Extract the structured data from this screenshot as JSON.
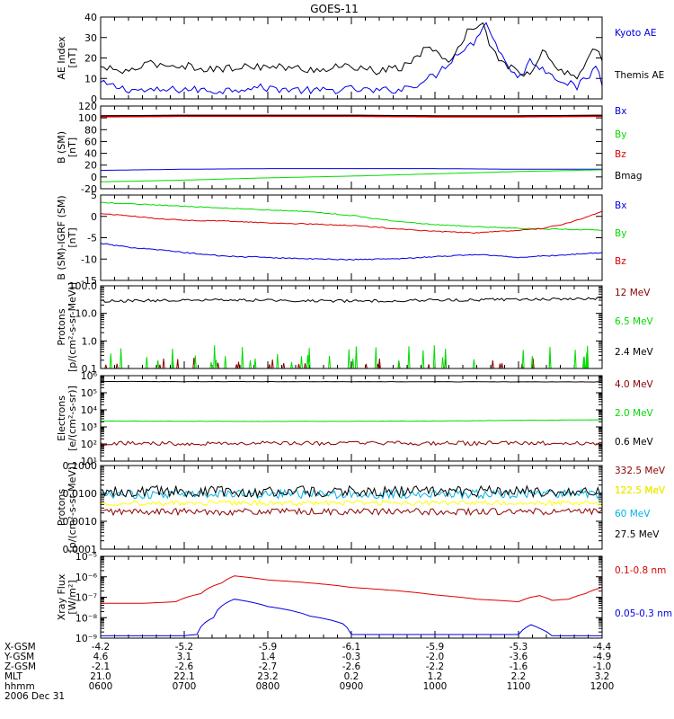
{
  "title": "GOES-11",
  "colors": {
    "black": "#000000",
    "blue": "#0000e6",
    "green": "#00dc00",
    "red": "#dc0000",
    "darkred": "#8b0000",
    "cyan": "#00b4e6",
    "yellow": "#ffff00"
  },
  "time_axis": {
    "ticks": [
      "0600",
      "0700",
      "0800",
      "0900",
      "1000",
      "1100",
      "1200"
    ],
    "row_labels": [
      "X-GSM",
      "Y-GSM",
      "Z-GSM",
      "MLT",
      "hhmm"
    ],
    "rows": [
      [
        "-4.2",
        "-5.2",
        "-5.9",
        "-6.1",
        "-5.9",
        "-5.3",
        "-4.4"
      ],
      [
        "4.6",
        "3.1",
        "1.4",
        "-0.3",
        "-2.0",
        "-3.6",
        "-4.9"
      ],
      [
        "-2.1",
        "-2.6",
        "-2.7",
        "-2.6",
        "-2.2",
        "-1.6",
        "-1.0"
      ],
      [
        "21.0",
        "22.1",
        "23.2",
        "0.2",
        "1.2",
        "2.2",
        "3.2"
      ],
      [
        "0600",
        "0700",
        "0800",
        "0900",
        "1000",
        "1100",
        "1200"
      ]
    ],
    "date": "2006 Dec 31"
  },
  "chart_data": [
    {
      "type": "line",
      "ylabel": "AE Index\n[nT]",
      "ylim": [
        0,
        42
      ],
      "yticks": [
        "0",
        "10",
        "20",
        "30",
        "40"
      ],
      "yscale": "linear",
      "series": [
        {
          "name": "Kyoto AE",
          "color": "#0000e6",
          "x": [
            6.0,
            6.3,
            6.6,
            7.0,
            7.4,
            7.8,
            8.2,
            8.6,
            9.0,
            9.3,
            9.6,
            9.8,
            10.0,
            10.15,
            10.3,
            10.45,
            10.6,
            10.8,
            11.0,
            11.15,
            11.3,
            11.5,
            11.7,
            11.85,
            11.95,
            12.0
          ],
          "y": [
            8,
            5,
            4,
            5,
            4,
            6,
            5,
            4,
            5,
            4,
            5,
            8,
            12,
            18,
            25,
            28,
            40,
            22,
            10,
            20,
            15,
            10,
            6,
            12,
            18,
            6
          ]
        },
        {
          "name": "Themis AE",
          "color": "#000000",
          "x": [
            6.0,
            6.3,
            6.6,
            7.0,
            7.4,
            7.8,
            8.2,
            8.6,
            9.0,
            9.3,
            9.6,
            9.8,
            9.95,
            10.1,
            10.25,
            10.4,
            10.55,
            10.7,
            10.85,
            11.0,
            11.15,
            11.3,
            11.5,
            11.7,
            11.85,
            11.95,
            12.0
          ],
          "y": [
            16,
            14,
            18,
            17,
            15,
            17,
            16,
            15,
            17,
            14,
            16,
            22,
            28,
            18,
            24,
            35,
            40,
            24,
            18,
            14,
            12,
            25,
            14,
            12,
            22,
            28,
            18
          ]
        }
      ]
    },
    {
      "type": "line",
      "ylabel": "B (SM)\n[nT]",
      "ylim": [
        -22,
        122
      ],
      "yticks": [
        "-20",
        "0",
        "20",
        "40",
        "60",
        "80",
        "100",
        "120"
      ],
      "yscale": "linear",
      "series": [
        {
          "name": "Bx",
          "color": "#0000e6",
          "x": [
            6.0,
            7.0,
            8.0,
            9.0,
            10.0,
            11.0,
            12.0
          ],
          "y": [
            10,
            12,
            13,
            13,
            13,
            12,
            12
          ]
        },
        {
          "name": "By",
          "color": "#00dc00",
          "x": [
            6.0,
            7.0,
            8.0,
            9.0,
            10.0,
            11.0,
            12.0
          ],
          "y": [
            -10,
            -7,
            -3,
            0,
            4,
            8,
            11
          ]
        },
        {
          "name": "Bz",
          "color": "#dc0000",
          "x": [
            6.0,
            7.0,
            8.0,
            9.0,
            10.0,
            11.0,
            12.0
          ],
          "y": [
            104,
            105,
            105,
            105,
            104,
            104,
            105
          ]
        },
        {
          "name": "Bmag",
          "color": "#000000",
          "x": [
            6.0,
            7.0,
            8.0,
            9.0,
            10.0,
            11.0,
            12.0
          ],
          "y": [
            105,
            106,
            106,
            106,
            105,
            105,
            106
          ]
        }
      ]
    },
    {
      "type": "line",
      "ylabel": "B (SM)-IGRF (SM)\n[nT]",
      "ylim": [
        -16,
        7
      ],
      "yticks": [
        "-15",
        "-10",
        "-5",
        "0",
        "5"
      ],
      "yscale": "linear",
      "series": [
        {
          "name": "Bx",
          "color": "#0000e6",
          "x": [
            6.0,
            6.3,
            6.6,
            7.0,
            7.5,
            8.0,
            8.5,
            9.0,
            9.5,
            10.0,
            10.5,
            11.0,
            11.5,
            12.0
          ],
          "y": [
            -6,
            -7,
            -7.5,
            -8.5,
            -9.5,
            -9.8,
            -10.2,
            -10.4,
            -10.2,
            -9.6,
            -9,
            -9.8,
            -9.2,
            -8.5
          ]
        },
        {
          "name": "By",
          "color": "#00dc00",
          "x": [
            6.0,
            6.5,
            7.0,
            7.5,
            8.0,
            8.5,
            9.0,
            9.5,
            10.0,
            10.5,
            11.0,
            11.5,
            12.0
          ],
          "y": [
            5,
            4.5,
            4,
            3.5,
            3,
            2.5,
            1.5,
            0,
            -1,
            -1.5,
            -2,
            -2.2,
            -2.5
          ]
        },
        {
          "name": "Bz",
          "color": "#dc0000",
          "x": [
            6.0,
            6.3,
            6.6,
            7.0,
            7.5,
            8.0,
            8.5,
            9.0,
            9.5,
            10.0,
            10.5,
            11.0,
            11.3,
            11.6,
            11.8,
            12.0
          ],
          "y": [
            2,
            1.5,
            0.8,
            0.2,
            0,
            -0.5,
            -0.8,
            -1.2,
            -2,
            -2.8,
            -3.2,
            -2.5,
            -2,
            -0.5,
            1,
            2.5
          ]
        }
      ]
    },
    {
      "type": "line",
      "ylabel": "Protons\n[p/(cm²-s-sr-MeV)]",
      "ylim": [
        0.1,
        100
      ],
      "yticks": [
        "0.1",
        "1.0",
        "10.0",
        "100.0"
      ],
      "yscale": "log",
      "series": [
        {
          "name": "12 MeV",
          "color": "#8b0000",
          "x": [
            6.0,
            12.0
          ],
          "y": [
            0.1,
            0.1
          ]
        },
        {
          "name": "6.5 MeV",
          "color": "#00dc00",
          "x": [
            6.0,
            12.0
          ],
          "y": [
            0.1,
            0.1
          ]
        },
        {
          "name": "2.4 MeV",
          "color": "#000000",
          "x": [
            6.0,
            7.0,
            8.0,
            9.0,
            10.0,
            11.0,
            12.0
          ],
          "y": [
            28,
            30,
            30,
            28,
            30,
            32,
            35
          ]
        }
      ]
    },
    {
      "type": "line",
      "ylabel": "Electrons\n[e/(cm²-s-sr)]",
      "ylim": [
        10,
        1000000
      ],
      "yticks": [
        "10¹",
        "10²",
        "10³",
        "10⁴",
        "10⁵",
        "10⁶"
      ],
      "yscale": "log",
      "series": [
        {
          "name": "4.0 MeV",
          "color": "#8b0000",
          "x": [
            6.0,
            12.0
          ],
          "y": [
            110,
            110
          ]
        },
        {
          "name": "2.0 MeV",
          "color": "#00dc00",
          "x": [
            6.0,
            8.0,
            10.0,
            12.0
          ],
          "y": [
            2200,
            2100,
            2200,
            2600
          ]
        },
        {
          "name": "0.6 MeV",
          "color": "#000000",
          "x": [
            6.0,
            8.0,
            10.0,
            12.0
          ],
          "y": [
            450000,
            450000,
            440000,
            430000
          ]
        }
      ]
    },
    {
      "type": "line",
      "ylabel": "Protons\n[p/(cm²-s-sr-MeV)]",
      "ylim": [
        0.0001,
        0.1
      ],
      "yticks": [
        "0.0001",
        "0.0010",
        "0.0100",
        "0.1000"
      ],
      "yscale": "log",
      "series": [
        {
          "name": "332.5 MeV",
          "color": "#8b0000",
          "x": [
            6.0,
            12.0
          ],
          "y": [
            0.0022,
            0.0022
          ]
        },
        {
          "name": "122.5 MeV",
          "color": "#ffff00",
          "x": [
            6.0,
            12.0
          ],
          "y": [
            0.0045,
            0.0045
          ]
        },
        {
          "name": "60 MeV",
          "color": "#00b4e6",
          "x": [
            6.0,
            12.0
          ],
          "y": [
            0.0095,
            0.0095
          ]
        },
        {
          "name": "27.5 MeV",
          "color": "#000000",
          "x": [
            6.0,
            12.0
          ],
          "y": [
            0.012,
            0.012
          ]
        }
      ]
    },
    {
      "type": "line",
      "ylabel": "Xray Flux\n[W/m²]",
      "ylim": [
        1e-09,
        1e-05
      ],
      "yticks": [
        "10⁻⁹",
        "10⁻⁸",
        "10⁻⁷",
        "10⁻⁶",
        "10⁻⁵"
      ],
      "yscale": "log",
      "series": [
        {
          "name": "0.1-0.8 nm",
          "color": "#dc0000",
          "x": [
            6.0,
            6.5,
            6.9,
            7.2,
            7.45,
            7.6,
            8.0,
            9.0,
            10.0,
            10.5,
            11.0,
            11.15,
            11.25,
            11.4,
            11.6,
            11.8,
            12.0
          ],
          "y": [
            5e-08,
            5e-08,
            6e-08,
            1.5e-07,
            5e-07,
            1.1e-06,
            7e-07,
            3e-07,
            1.3e-07,
            8e-08,
            6e-08,
            1e-07,
            1.2e-07,
            7e-08,
            8e-08,
            1.5e-07,
            3e-07
          ]
        },
        {
          "name": "0.05-0.3 nm",
          "color": "#0000e6",
          "x": [
            6.0,
            6.5,
            7.0,
            7.15,
            7.35,
            7.6,
            8.0,
            8.5,
            8.9,
            9.0,
            9.5,
            10.0,
            10.5,
            11.0,
            11.15,
            11.25,
            11.4,
            11.7,
            12.0
          ],
          "y": [
            1.3e-09,
            1.3e-09,
            1.3e-09,
            1.5e-09,
            1e-08,
            8e-08,
            3.5e-08,
            1.2e-08,
            5e-09,
            1.5e-09,
            1.5e-09,
            1.5e-09,
            1.5e-09,
            1.5e-09,
            4.5e-09,
            3e-09,
            1.3e-09,
            1.3e-09,
            1.3e-09
          ]
        }
      ]
    }
  ]
}
